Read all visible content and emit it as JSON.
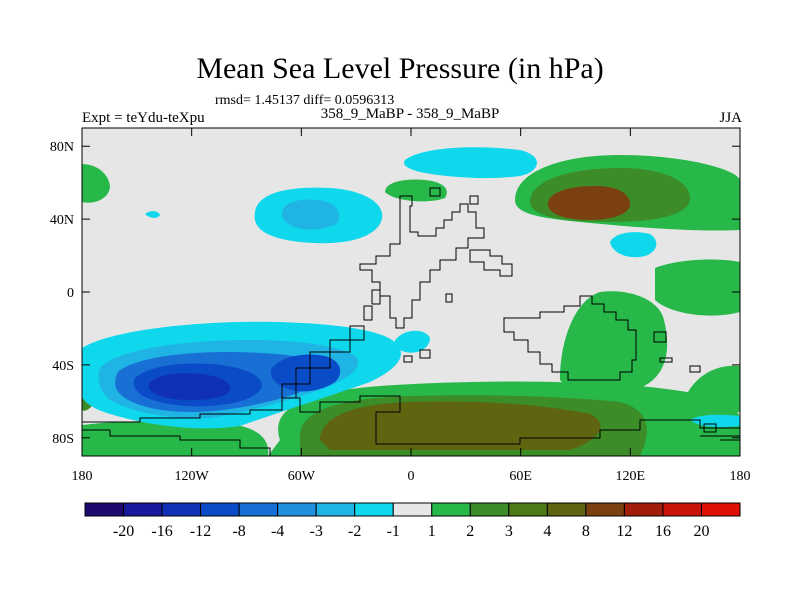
{
  "title": "Mean Sea Level Pressure (in hPa)",
  "stats_line": "rmsd= 1.45137 diff= 0.0596313",
  "left_label": "Expt = teYdu-teXpu",
  "center_label": "358_9_MaBP - 358_9_MaBP",
  "right_label": "JJA",
  "x_axis": {
    "ticks": [
      {
        "value": -180,
        "label": "180"
      },
      {
        "value": -120,
        "label": "120W"
      },
      {
        "value": -60,
        "label": "60W"
      },
      {
        "value": 0,
        "label": "0"
      },
      {
        "value": 60,
        "label": "60E"
      },
      {
        "value": 120,
        "label": "120E"
      },
      {
        "value": 180,
        "label": "180"
      }
    ],
    "range": [
      -180,
      180
    ]
  },
  "y_axis": {
    "ticks": [
      {
        "value": 80,
        "label": "80N"
      },
      {
        "value": 40,
        "label": "40N"
      },
      {
        "value": 0,
        "label": "0"
      },
      {
        "value": -40,
        "label": "40S"
      },
      {
        "value": -80,
        "label": "80S"
      }
    ],
    "range": [
      -90,
      90
    ]
  },
  "colorbar": {
    "labels": [
      "-20",
      "-16",
      "-12",
      "-8",
      "-4",
      "-3",
      "-2",
      "-1",
      "1",
      "2",
      "3",
      "4",
      "8",
      "12",
      "16",
      "20"
    ],
    "colors": [
      "#1e0a6e",
      "#1a1a9c",
      "#1030b8",
      "#0a4cc8",
      "#1870d4",
      "#2090dc",
      "#20b4e4",
      "#10d8ec",
      "#e6e6e6",
      "#28b84a",
      "#3c8c28",
      "#4e7a18",
      "#5e6410",
      "#7a4010",
      "#a01e0a",
      "#c81408",
      "#e01006"
    ]
  },
  "chart_data": {
    "type": "heatmap",
    "title": "Mean Sea Level Pressure (in hPa)",
    "projection": "cylindrical-equidistant",
    "lon_range": [
      -180,
      180
    ],
    "lat_range": [
      -90,
      90
    ],
    "units": "hPa",
    "contour_levels": [
      -20,
      -16,
      -12,
      -8,
      -4,
      -3,
      -2,
      -1,
      1,
      2,
      3,
      4,
      8,
      12,
      16,
      20
    ],
    "features": [
      {
        "region": "Southern Ocean south of Australia / Pacific",
        "lon": -120,
        "lat": -48,
        "value_range": [
          -8,
          -12
        ],
        "sign": "negative"
      },
      {
        "region": "Southern Ocean south of South America",
        "lon": -55,
        "lat": -42,
        "value_range": [
          -4,
          -8
        ],
        "sign": "negative"
      },
      {
        "region": "North Pacific",
        "lon": -65,
        "lat": 45,
        "value_range": [
          -2,
          -3
        ],
        "sign": "negative"
      },
      {
        "region": "Arctic",
        "lon": 20,
        "lat": 75,
        "value_range": [
          -1,
          -2
        ],
        "sign": "negative"
      },
      {
        "region": "Northern Siberia",
        "lon": 88,
        "lat": 48,
        "value_range": [
          4,
          8
        ],
        "sign": "positive"
      },
      {
        "region": "Antarctica",
        "lon": 30,
        "lat": -75,
        "value_range": [
          3,
          4
        ],
        "sign": "positive"
      },
      {
        "region": "South Indian Ocean",
        "lon": 100,
        "lat": -20,
        "value_range": [
          1,
          2
        ],
        "sign": "positive"
      }
    ]
  }
}
